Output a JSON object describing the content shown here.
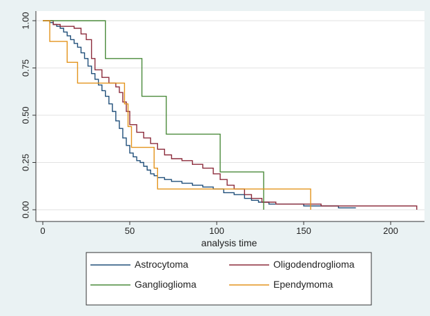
{
  "chart_data": {
    "type": "line",
    "step": true,
    "title": "",
    "xlabel": "analysis time",
    "ylabel": "",
    "xlim": [
      0,
      220
    ],
    "ylim": [
      0,
      1
    ],
    "xticks": [
      0,
      50,
      100,
      150,
      200
    ],
    "yticks": [
      0.0,
      0.25,
      0.5,
      0.75,
      1.0
    ],
    "ytick_labels": [
      "0.00",
      "0.25",
      "0.50",
      "0.75",
      "1.00"
    ],
    "grid": "horizontal",
    "legend_position": "bottom",
    "series": [
      {
        "name": "Astrocytoma",
        "color": "#1f4e79",
        "points": [
          [
            0,
            1.0
          ],
          [
            4,
            0.99
          ],
          [
            6,
            0.98
          ],
          [
            8,
            0.97
          ],
          [
            10,
            0.96
          ],
          [
            12,
            0.94
          ],
          [
            14,
            0.92
          ],
          [
            16,
            0.9
          ],
          [
            18,
            0.88
          ],
          [
            20,
            0.86
          ],
          [
            22,
            0.83
          ],
          [
            24,
            0.8
          ],
          [
            26,
            0.76
          ],
          [
            28,
            0.72
          ],
          [
            30,
            0.69
          ],
          [
            32,
            0.66
          ],
          [
            34,
            0.63
          ],
          [
            36,
            0.6
          ],
          [
            38,
            0.56
          ],
          [
            40,
            0.52
          ],
          [
            42,
            0.47
          ],
          [
            44,
            0.43
          ],
          [
            46,
            0.38
          ],
          [
            48,
            0.34
          ],
          [
            50,
            0.3
          ],
          [
            52,
            0.28
          ],
          [
            54,
            0.26
          ],
          [
            56,
            0.25
          ],
          [
            58,
            0.23
          ],
          [
            60,
            0.21
          ],
          [
            62,
            0.19
          ],
          [
            64,
            0.18
          ],
          [
            66,
            0.17
          ],
          [
            70,
            0.16
          ],
          [
            74,
            0.15
          ],
          [
            80,
            0.14
          ],
          [
            86,
            0.13
          ],
          [
            92,
            0.12
          ],
          [
            98,
            0.11
          ],
          [
            104,
            0.09
          ],
          [
            110,
            0.08
          ],
          [
            116,
            0.06
          ],
          [
            120,
            0.05
          ],
          [
            124,
            0.04
          ],
          [
            130,
            0.03
          ],
          [
            140,
            0.03
          ],
          [
            150,
            0.02
          ],
          [
            170,
            0.01
          ],
          [
            180,
            0.01
          ]
        ]
      },
      {
        "name": "Oligodendroglioma",
        "color": "#8b2a3a",
        "points": [
          [
            0,
            1.0
          ],
          [
            6,
            0.98
          ],
          [
            10,
            0.97
          ],
          [
            18,
            0.96
          ],
          [
            22,
            0.93
          ],
          [
            25,
            0.9
          ],
          [
            28,
            0.8
          ],
          [
            30,
            0.74
          ],
          [
            34,
            0.7
          ],
          [
            38,
            0.67
          ],
          [
            42,
            0.65
          ],
          [
            44,
            0.62
          ],
          [
            46,
            0.57
          ],
          [
            48,
            0.52
          ],
          [
            50,
            0.45
          ],
          [
            54,
            0.41
          ],
          [
            58,
            0.38
          ],
          [
            62,
            0.35
          ],
          [
            66,
            0.32
          ],
          [
            70,
            0.29
          ],
          [
            74,
            0.27
          ],
          [
            80,
            0.26
          ],
          [
            86,
            0.24
          ],
          [
            92,
            0.22
          ],
          [
            98,
            0.19
          ],
          [
            102,
            0.16
          ],
          [
            106,
            0.13
          ],
          [
            110,
            0.11
          ],
          [
            116,
            0.08
          ],
          [
            120,
            0.06
          ],
          [
            126,
            0.04
          ],
          [
            134,
            0.03
          ],
          [
            160,
            0.02
          ],
          [
            200,
            0.02
          ],
          [
            215,
            0.02
          ],
          [
            215,
            0.0
          ]
        ]
      },
      {
        "name": "Ganglioglioma",
        "color": "#4a8a3a",
        "points": [
          [
            0,
            1.0
          ],
          [
            36,
            1.0
          ],
          [
            36,
            0.8
          ],
          [
            57,
            0.8
          ],
          [
            57,
            0.6
          ],
          [
            71,
            0.6
          ],
          [
            71,
            0.4
          ],
          [
            102,
            0.4
          ],
          [
            102,
            0.2
          ],
          [
            127,
            0.2
          ],
          [
            127,
            0.0
          ]
        ]
      },
      {
        "name": "Ependymoma",
        "color": "#e3931b",
        "points": [
          [
            0,
            1.0
          ],
          [
            4,
            1.0
          ],
          [
            4,
            0.89
          ],
          [
            14,
            0.89
          ],
          [
            14,
            0.78
          ],
          [
            20,
            0.78
          ],
          [
            20,
            0.67
          ],
          [
            47,
            0.67
          ],
          [
            47,
            0.56
          ],
          [
            49,
            0.56
          ],
          [
            49,
            0.44
          ],
          [
            51,
            0.44
          ],
          [
            51,
            0.33
          ],
          [
            64,
            0.33
          ],
          [
            64,
            0.22
          ],
          [
            66,
            0.22
          ],
          [
            66,
            0.11
          ],
          [
            154,
            0.11
          ],
          [
            154,
            0.0
          ]
        ]
      }
    ]
  }
}
